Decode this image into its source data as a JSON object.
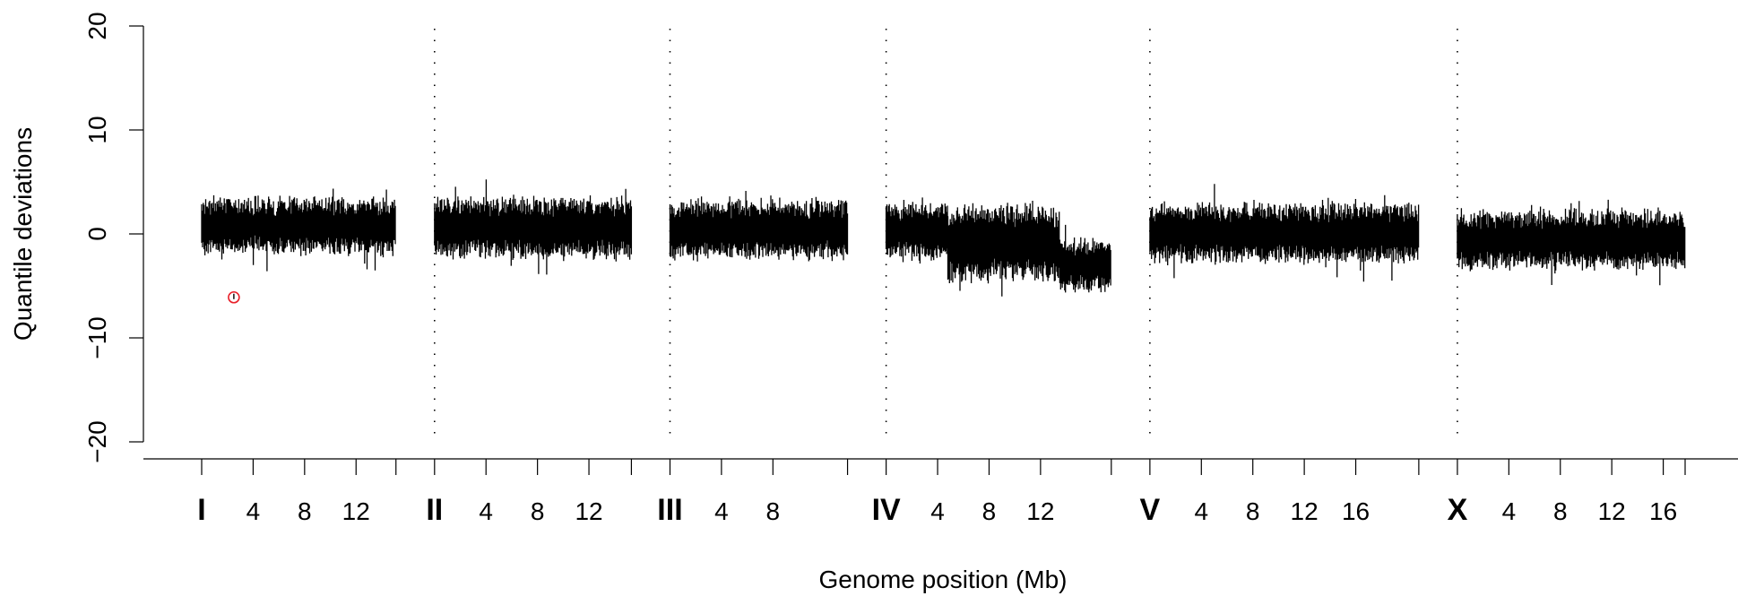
{
  "chart_data": {
    "type": "scatter",
    "title": "",
    "xlabel": "Genome position (Mb)",
    "ylabel": "Quantile deviations",
    "ylim": [
      -20,
      20
    ],
    "yticks": [
      "-20",
      "-10",
      "0",
      "10",
      "20"
    ],
    "grid": false,
    "legend": "none",
    "point_color": "#000000",
    "outlier_color": "#e8202a",
    "chromosomes": [
      {
        "name": "I",
        "length_mb": 15.1,
        "ticks": [
          "4",
          "8",
          "12"
        ]
      },
      {
        "name": "II",
        "length_mb": 15.3,
        "ticks": [
          "4",
          "8",
          "12"
        ]
      },
      {
        "name": "III",
        "length_mb": 13.8,
        "ticks": [
          "4",
          "8"
        ]
      },
      {
        "name": "IV",
        "length_mb": 17.5,
        "ticks": [
          "4",
          "8",
          "12"
        ]
      },
      {
        "name": "V",
        "length_mb": 20.9,
        "ticks": [
          "4",
          "8",
          "12",
          "16"
        ]
      },
      {
        "name": "X",
        "length_mb": 17.7,
        "ticks": [
          "4",
          "8",
          "12",
          "16"
        ]
      }
    ],
    "outliers": [
      {
        "chromosome": "I",
        "position_mb": 2.5,
        "value": -6.1
      }
    ],
    "deviation_bands": [
      {
        "chromosome": "I",
        "start_mb": 0.0,
        "end_mb": 15.1,
        "center": 0.8,
        "spread": 2.4
      },
      {
        "chromosome": "II",
        "start_mb": 0.0,
        "end_mb": 15.3,
        "center": 0.6,
        "spread": 2.6
      },
      {
        "chromosome": "III",
        "start_mb": 0.0,
        "end_mb": 13.8,
        "center": 0.4,
        "spread": 2.5
      },
      {
        "chromosome": "IV",
        "start_mb": 0.0,
        "end_mb": 4.8,
        "center": 0.3,
        "spread": 2.4
      },
      {
        "chromosome": "IV",
        "start_mb": 4.8,
        "end_mb": 13.5,
        "center": -0.9,
        "spread": 3.3
      },
      {
        "chromosome": "IV",
        "start_mb": 13.5,
        "end_mb": 17.5,
        "center": -3.0,
        "spread": 2.2
      },
      {
        "chromosome": "V",
        "start_mb": 0.0,
        "end_mb": 20.9,
        "center": 0.1,
        "spread": 2.5
      },
      {
        "chromosome": "X",
        "start_mb": 0.0,
        "end_mb": 17.7,
        "center": -0.6,
        "spread": 2.5
      }
    ]
  }
}
